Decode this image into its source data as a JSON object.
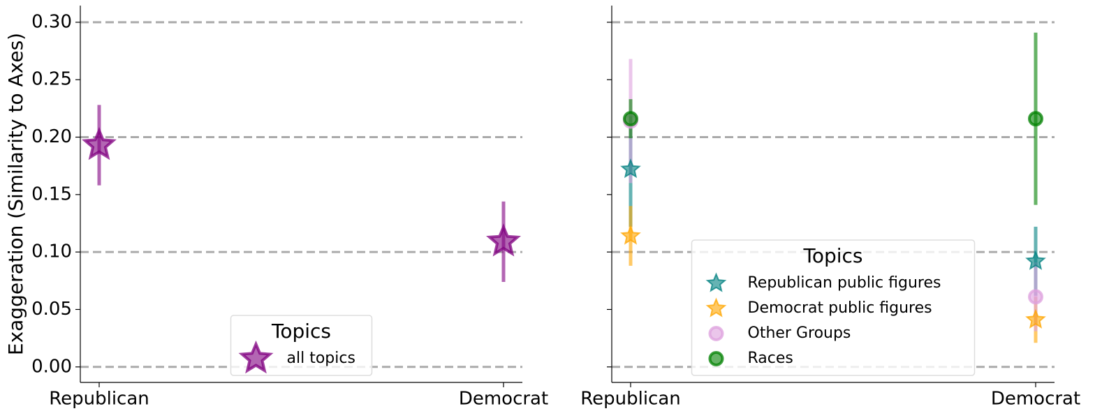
{
  "chart_data": [
    {
      "type": "errorbar",
      "ylabel": "Exaggeration (Similarity to Axes)",
      "categories": [
        "Republican",
        "Democrat"
      ],
      "series": [
        {
          "name": "all topics",
          "color": "#800080",
          "marker": "star",
          "values": [
            0.193,
            0.109
          ],
          "errors": [
            0.035,
            0.035
          ]
        }
      ],
      "ylim": [
        -0.0135,
        0.3145
      ],
      "yticks": [
        {
          "value": 0,
          "label": "0.00"
        },
        {
          "value": 0.05,
          "label": "0.05"
        },
        {
          "value": 0.1,
          "label": "0.10"
        },
        {
          "value": 0.15,
          "label": "0.15"
        },
        {
          "value": 0.2,
          "label": "0.20"
        },
        {
          "value": 0.25,
          "label": "0.25"
        },
        {
          "value": 0.3,
          "label": "0.30"
        }
      ],
      "hlines": [
        0,
        0.1,
        0.2,
        0.3
      ],
      "legend_title": "Topics",
      "legend": "lower center"
    },
    {
      "type": "errorbar",
      "categories": [
        "Republican",
        "Democrat"
      ],
      "series": [
        {
          "name": "Republican public figures",
          "color": "#008080",
          "marker": "star",
          "values": [
            0.172,
            0.092
          ],
          "errors": [
            0.05,
            0.03
          ]
        },
        {
          "name": "Democrat public figures",
          "color": "#ffa500",
          "marker": "star",
          "values": [
            0.114,
            0.041
          ],
          "errors": [
            0.026,
            0.02
          ]
        },
        {
          "name": "Other Groups",
          "color": "#dda0dd",
          "marker": "circle",
          "values": [
            0.214,
            0.061
          ],
          "errors": [
            0.054,
            0.03
          ]
        },
        {
          "name": "Races",
          "color": "#008000",
          "marker": "circle",
          "values": [
            0.216,
            0.216
          ],
          "errors": [
            0.017,
            0.075
          ]
        }
      ],
      "ylim": [
        -0.0135,
        0.3145
      ],
      "yticks": [
        0,
        0.05,
        0.1,
        0.15,
        0.2,
        0.25,
        0.3
      ],
      "hlines": [
        0,
        0.1,
        0.2,
        0.3
      ],
      "legend_title": "Topics",
      "legend": "lower center"
    }
  ]
}
